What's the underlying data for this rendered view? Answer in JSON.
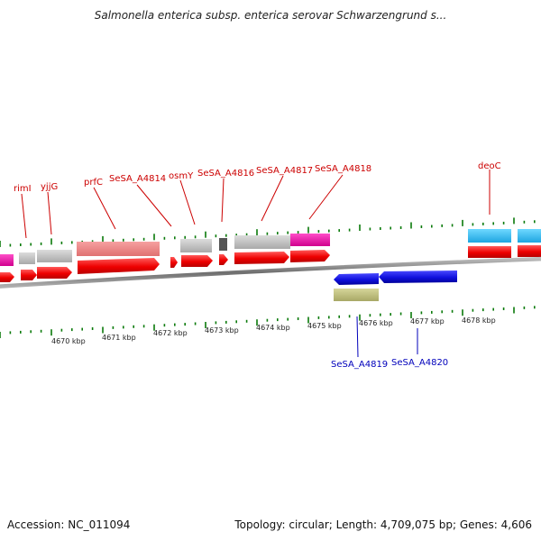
{
  "title": "Salmonella enterica subsp. enterica serovar Schwarzengrund s...",
  "footer": {
    "accession": "Accession: NC_011094",
    "topology": "Topology: circular; Length: 4,709,075 bp; Genes: 4,606"
  },
  "colors": {
    "forward_label": "#cc0000",
    "reverse_label": "#0000bb",
    "tick": "#0a7a0a",
    "backbone": "#8a8a8a"
  },
  "forward_labels": [
    "rimI",
    "yjjG",
    "prfC",
    "SeSA_A4814",
    "osmY",
    "SeSA_A4816",
    "SeSA_A4817",
    "SeSA_A4818",
    "deoC"
  ],
  "reverse_labels": [
    "SeSA_A4819",
    "SeSA_A4820"
  ],
  "scale_labels": [
    "4670 kbp",
    "4671 kbp",
    "4672 kbp",
    "4673 kbp",
    "4674 kbp",
    "4675 kbp",
    "4676 kbp",
    "4677 kbp",
    "4678 kbp"
  ]
}
